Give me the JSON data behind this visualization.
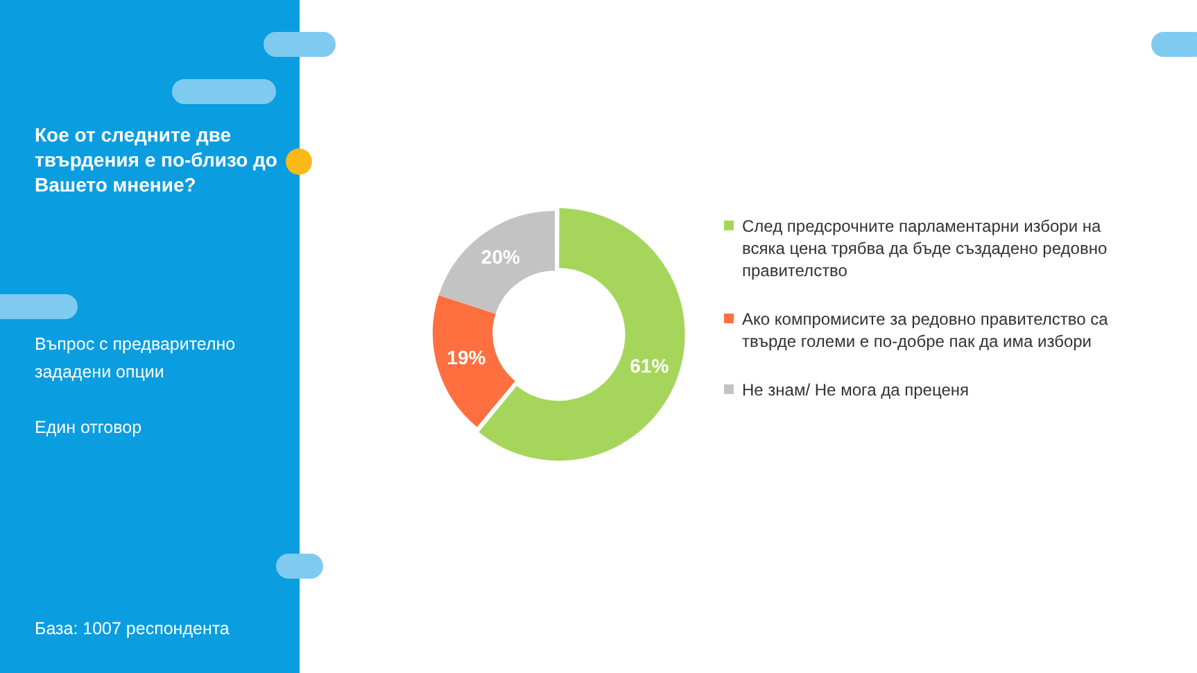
{
  "chart_data": {
    "type": "donut",
    "title": "Кое от следните две твърдения е по-близо до Вашето мнение?",
    "annotations": [
      "Въпрос с предварително зададени опции",
      "Един отговор",
      "База:  1007 респондента"
    ],
    "categories": [
      "След предсрочните парламентарни избори на всяка цена трябва да бъде създадено редовно правителство",
      "Ако компромисите за редовно правителство са твърде големи е по-добре пак да има избори",
      "Не знам/ Не мога да преценя"
    ],
    "values": [
      61,
      19,
      20
    ],
    "colors": [
      "#a5d65b",
      "#ff6f3f",
      "#c3c3c3"
    ],
    "value_labels": [
      "61%",
      "19%",
      "20%"
    ],
    "legend": "right"
  }
}
